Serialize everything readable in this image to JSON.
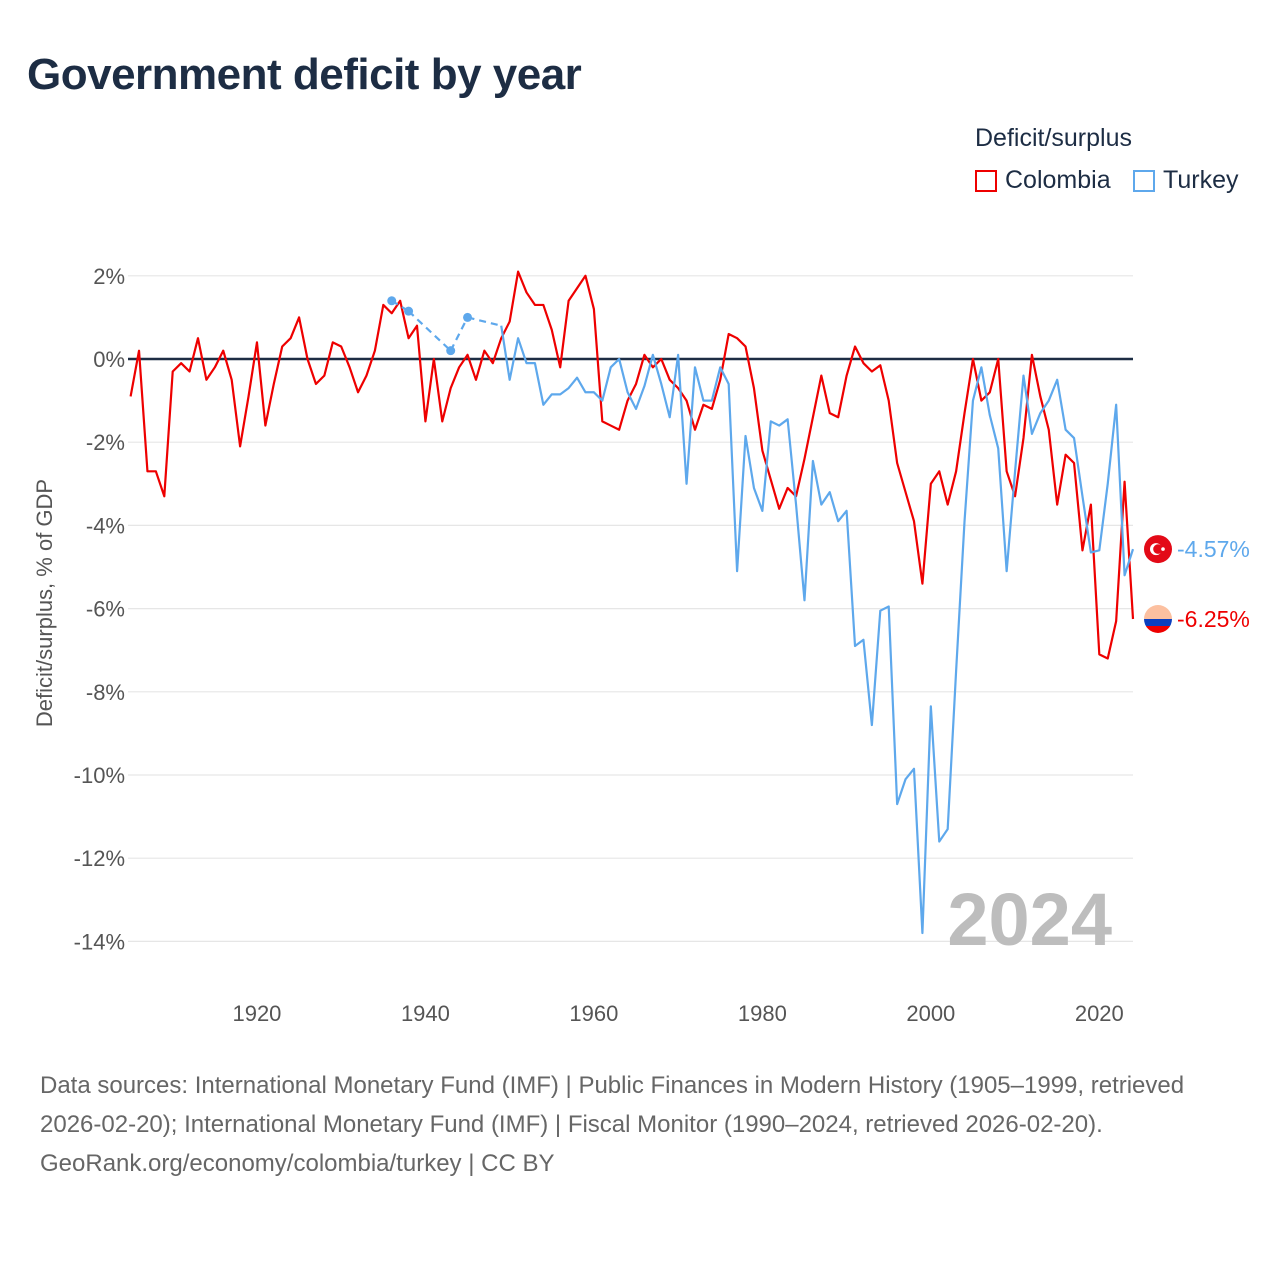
{
  "chart_data": {
    "type": "line",
    "title": "Government deficit by year",
    "xlabel": "",
    "ylabel": "Deficit/surplus, % of GDP",
    "xlim": [
      1905,
      2024
    ],
    "ylim": [
      -14,
      2
    ],
    "x_ticks": [
      1920,
      1940,
      1960,
      1980,
      2000,
      2020
    ],
    "x_tick_labels": [
      "1920",
      "1940",
      "1960",
      "1980",
      "2000",
      "2020"
    ],
    "y_ticks": [
      2,
      0,
      -2,
      -4,
      -6,
      -8,
      -10,
      -12,
      -14
    ],
    "y_tick_labels": [
      "2%",
      "0%",
      "-2%",
      "-4%",
      "-6%",
      "-8%",
      "-10%",
      "-12%",
      "-14%"
    ],
    "grid": true,
    "legend_title": "Deficit/surplus",
    "legend_placement": "top-right",
    "watermark_year": "2024",
    "series": [
      {
        "name": "Colombia",
        "color": "#ee0000",
        "end_label": "-6.25%",
        "start_year": 1905,
        "values": [
          -0.9,
          0.2,
          -2.7,
          -2.7,
          -3.3,
          -0.3,
          -0.1,
          -0.3,
          0.5,
          -0.5,
          -0.2,
          0.2,
          -0.5,
          -2.1,
          -0.9,
          0.4,
          -1.6,
          -0.6,
          0.3,
          0.5,
          1.0,
          0.0,
          -0.6,
          -0.4,
          0.4,
          0.3,
          -0.2,
          -0.8,
          -0.4,
          0.2,
          1.3,
          1.1,
          1.4,
          0.5,
          0.8,
          -1.5,
          0.0,
          -1.5,
          -0.7,
          -0.2,
          0.1,
          -0.5,
          0.2,
          -0.1,
          0.5,
          0.9,
          2.1,
          1.6,
          1.3,
          1.3,
          0.7,
          -0.2,
          1.4,
          1.7,
          2.0,
          1.2,
          -1.5,
          -1.6,
          -1.7,
          -1.0,
          -0.6,
          0.1,
          -0.2,
          0.0,
          -0.5,
          -0.7,
          -1.0,
          -1.7,
          -1.1,
          -1.2,
          -0.5,
          0.6,
          0.5,
          0.3,
          -0.7,
          -2.2,
          -2.9,
          -3.6,
          -3.1,
          -3.3,
          -2.4,
          -1.4,
          -0.4,
          -1.3,
          -1.4,
          -0.4,
          0.3,
          -0.1,
          -0.3,
          -0.15,
          -1.0,
          -2.5,
          -3.2,
          -3.9,
          -5.4,
          -3.0,
          -2.7,
          -3.5,
          -2.7,
          -1.3,
          0.0,
          -1.0,
          -0.8,
          0.0,
          -2.7,
          -3.3,
          -1.9,
          0.1,
          -0.9,
          -1.7,
          -3.5,
          -2.3,
          -2.5,
          -4.6,
          -3.5,
          -7.1,
          -7.2,
          -6.3,
          -2.95,
          -6.25
        ]
      },
      {
        "name": "Turkey",
        "color": "#5ea8ec",
        "end_label": "-4.57%",
        "start_year": 1936,
        "values": [
          1.4,
          null,
          1.15,
          null,
          null,
          null,
          null,
          0.2,
          null,
          1.0,
          null,
          null,
          null,
          0.8,
          -0.5,
          0.5,
          -0.1,
          -0.1,
          -1.1,
          -0.85,
          -0.85,
          -0.7,
          -0.45,
          -0.8,
          -0.8,
          -1.0,
          -0.2,
          0.0,
          -0.8,
          -1.2,
          -0.65,
          0.1,
          -0.6,
          -1.4,
          0.1,
          -3.0,
          -0.2,
          -1.0,
          -1.0,
          -0.2,
          -0.6,
          -5.1,
          -1.85,
          -3.1,
          -3.65,
          -1.5,
          -1.6,
          -1.45,
          -3.5,
          -5.8,
          -2.45,
          -3.5,
          -3.2,
          -3.9,
          -3.65,
          -6.9,
          -6.75,
          -8.8,
          -6.05,
          -5.95,
          -10.7,
          -10.1,
          -9.85,
          -13.8,
          -8.35,
          -11.6,
          -11.3,
          -7.5,
          -3.9,
          -1.0,
          -0.2,
          -1.35,
          -2.15,
          -5.1,
          -2.7,
          -0.4,
          -1.8,
          -1.3,
          -1.0,
          -0.5,
          -1.7,
          -1.9,
          -3.3,
          -4.65,
          -4.6,
          -3.0,
          -1.1,
          -5.2,
          -4.57
        ]
      }
    ]
  },
  "footer": {
    "sources": "Data sources: International Monetary Fund (IMF) | Public Finances in Modern History (1905–1999, retrieved 2026-02-20); International Monetary Fund (IMF) | Fiscal Monitor (1990–2024, retrieved 2026-02-20).",
    "credit": "GeoRank.org/economy/colombia/turkey | CC BY"
  }
}
